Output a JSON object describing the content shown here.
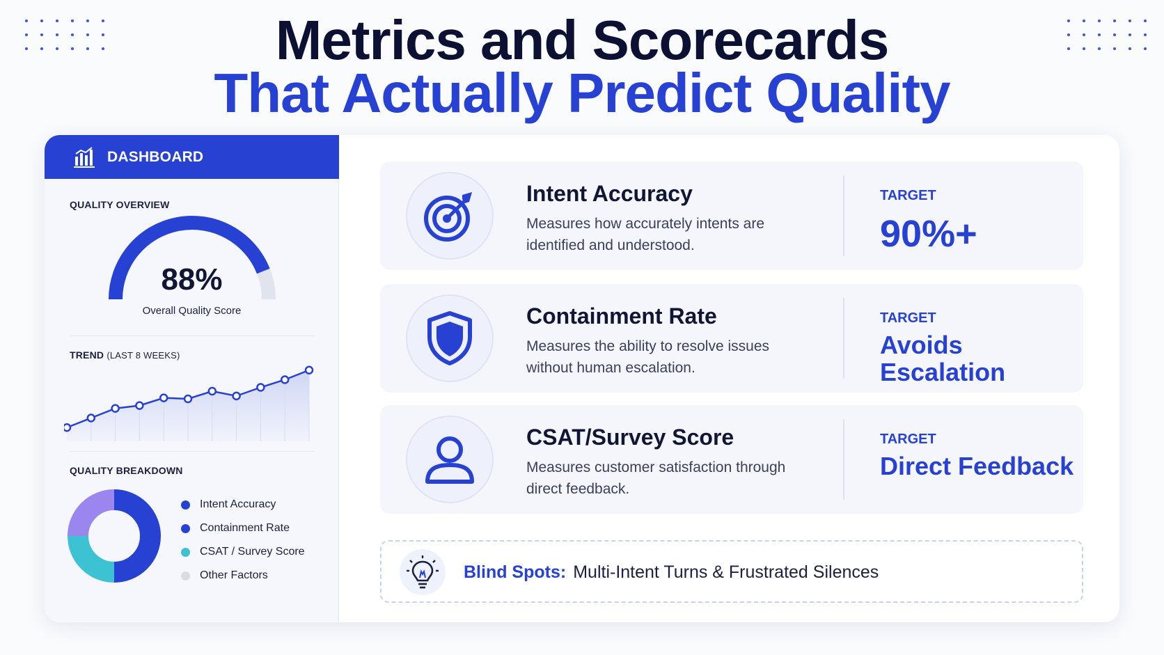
{
  "header": {
    "title_line1": "Metrics and Scorecards",
    "title_line2": "That Actually Predict Quality"
  },
  "colors": {
    "accent": "#2741d3",
    "dark_text": "#111634",
    "teal": "#3cc2d2",
    "purple": "#9b86f0",
    "light_gray": "#d9dce6"
  },
  "dashboard": {
    "header_title": "DASHBOARD",
    "header_icon": "bar-chart-icon",
    "quality_overview": {
      "label": "QUALITY OVERVIEW",
      "value": "88%",
      "percent": 88,
      "caption": "Overall Quality Score"
    },
    "trend": {
      "label": "TREND",
      "sublabel": "(LAST 8 WEEKS)"
    },
    "breakdown": {
      "label": "QUALITY BREAKDOWN",
      "items": [
        {
          "label": "Intent Accuracy",
          "color": "#2741d3"
        },
        {
          "label": "Containment Rate",
          "color": "#2741d3"
        },
        {
          "label": "CSAT / Survey Score",
          "color": "#3cc2d2"
        },
        {
          "label": "Other Factors",
          "color": "#d9dce6"
        }
      ]
    }
  },
  "chart_data": [
    {
      "type": "line",
      "title": "TREND (LAST 8 WEEKS)",
      "x": [
        1,
        2,
        3,
        4,
        5,
        6,
        7,
        8,
        9,
        10,
        11
      ],
      "values": [
        1.0,
        2.0,
        3.0,
        3.3,
        4.1,
        4.0,
        4.8,
        4.3,
        5.2,
        6.0,
        7.0
      ],
      "ylim": [
        0,
        8
      ],
      "grid": false
    },
    {
      "type": "pie",
      "title": "QUALITY BREAKDOWN",
      "donut": true,
      "slices": [
        {
          "label": "Intent Accuracy + Containment Rate",
          "value": 50,
          "color": "#2741d3"
        },
        {
          "label": "CSAT / Survey Score",
          "value": 25,
          "color": "#3cc2d2"
        },
        {
          "label": "Other",
          "value": 25,
          "color": "#9b86f0"
        }
      ]
    }
  ],
  "metrics": [
    {
      "icon": "target-icon",
      "title": "Intent Accuracy",
      "description": "Measures how accurately intents are identified and understood.",
      "target_label": "TARGET",
      "target_value": "90%+"
    },
    {
      "icon": "shield-icon",
      "title": "Containment Rate",
      "description": "Measures the ability to resolve issues without human escalation.",
      "target_label": "TARGET",
      "target_value": "Avoids Escalation"
    },
    {
      "icon": "user-icon",
      "title": "CSAT/Survey Score",
      "description": "Measures customer satisfaction through direct feedback.",
      "target_label": "TARGET",
      "target_value": "Direct Feedback"
    }
  ],
  "blind_spots": {
    "icon": "lightbulb-icon",
    "label": "Blind Spots:",
    "text": "Multi-Intent Turns & Frustrated Silences"
  }
}
